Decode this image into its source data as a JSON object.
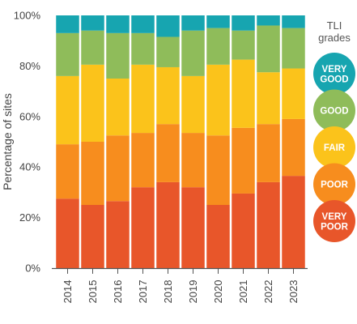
{
  "chart_data": {
    "type": "bar",
    "stacked": true,
    "percent": true,
    "categories": [
      "2014",
      "2015",
      "2016",
      "2017",
      "2018",
      "2019",
      "2020",
      "2021",
      "2022",
      "2023"
    ],
    "ylabel": "Percentage of sites",
    "ylim": [
      0,
      100
    ],
    "yticks": [
      "0%",
      "20%",
      "40%",
      "60%",
      "80%",
      "100%"
    ],
    "legend_title": [
      "TLI",
      "grades"
    ],
    "legend_position": "right",
    "series": [
      {
        "name": "VERY POOR",
        "color": "#e8562a",
        "values": [
          27.5,
          25.0,
          26.5,
          32.0,
          34.0,
          32.0,
          25.0,
          29.5,
          34.0,
          36.5
        ]
      },
      {
        "name": "POOR",
        "color": "#f78d1e",
        "values": [
          21.5,
          25.0,
          26.0,
          21.5,
          23.0,
          21.5,
          27.5,
          26.0,
          23.0,
          22.5
        ]
      },
      {
        "name": "FAIR",
        "color": "#fbc31b",
        "values": [
          27.0,
          30.5,
          22.5,
          27.0,
          22.5,
          22.5,
          28.0,
          27.0,
          20.5,
          20.0
        ]
      },
      {
        "name": "GOOD",
        "color": "#8fbc5a",
        "values": [
          17.0,
          13.5,
          18.0,
          12.5,
          12.0,
          18.0,
          14.5,
          11.5,
          18.5,
          16.0
        ]
      },
      {
        "name": "VERY GOOD",
        "color": "#17a5b0",
        "values": [
          7.0,
          6.0,
          7.0,
          7.0,
          8.5,
          6.0,
          5.0,
          6.0,
          4.0,
          5.0
        ]
      }
    ],
    "legend_items": [
      {
        "lines": [
          "VERY",
          "GOOD"
        ],
        "color": "#17a5b0"
      },
      {
        "lines": [
          "GOOD"
        ],
        "color": "#8fbc5a"
      },
      {
        "lines": [
          "FAIR"
        ],
        "color": "#fbc31b"
      },
      {
        "lines": [
          "POOR"
        ],
        "color": "#f78d1e"
      },
      {
        "lines": [
          "VERY",
          "POOR"
        ],
        "color": "#e8562a"
      }
    ],
    "grid": false
  }
}
